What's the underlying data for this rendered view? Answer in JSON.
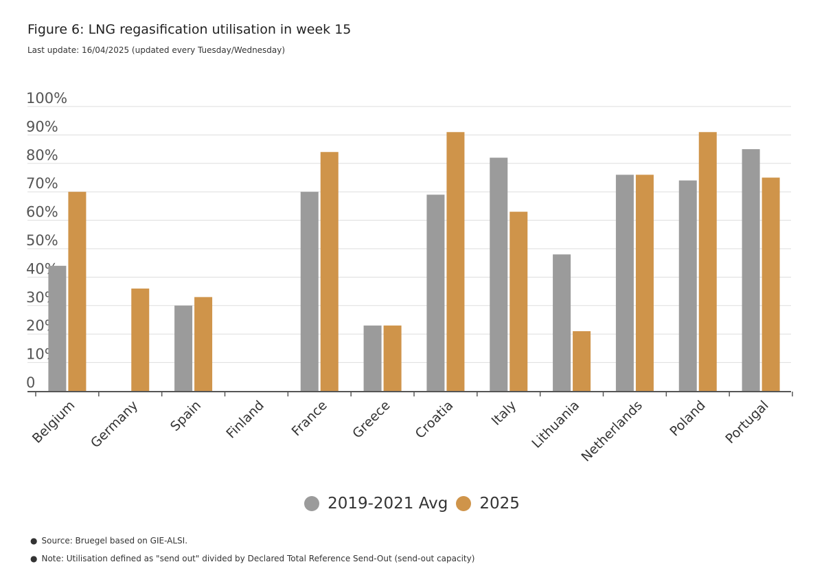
{
  "header": {
    "title": "Figure 6: LNG regasification utilisation in week 15",
    "subtitle": "Last update: 16/04/2025 (updated every Tuesday/Wednesday)"
  },
  "colors": {
    "avg": "#9b9b9b",
    "current": "#cf944a",
    "grid": "#dddddd",
    "axis": "#555555"
  },
  "chart_data": {
    "type": "bar",
    "categories": [
      "Belgium",
      "Germany",
      "Spain",
      "Finland",
      "France",
      "Greece",
      "Croatia",
      "Italy",
      "Lithuania",
      "Netherlands",
      "Poland",
      "Portugal"
    ],
    "series": [
      {
        "name": "2019-2021 Avg",
        "values": [
          44,
          null,
          30,
          null,
          70,
          23,
          69,
          82,
          48,
          76,
          74,
          85
        ]
      },
      {
        "name": "2025",
        "values": [
          70,
          36,
          33,
          null,
          84,
          23,
          91,
          63,
          21,
          76,
          91,
          75
        ]
      }
    ],
    "y_ticks": [
      "0",
      "10%",
      "20%",
      "30%",
      "40%",
      "50%",
      "60%",
      "70%",
      "80%",
      "90%",
      "100%"
    ],
    "ylim": [
      0,
      100
    ],
    "grid": true,
    "legend_position": "bottom-center"
  },
  "legend": {
    "items": [
      {
        "label": "2019-2021 Avg"
      },
      {
        "label": "2025"
      }
    ]
  },
  "footnotes": {
    "source": "Source: Bruegel based on GIE-ALSI.",
    "note": "Note: Utilisation defined as \"send out\" divided by Declared Total Reference Send-Out (send-out capacity)",
    "bullet": "●"
  }
}
